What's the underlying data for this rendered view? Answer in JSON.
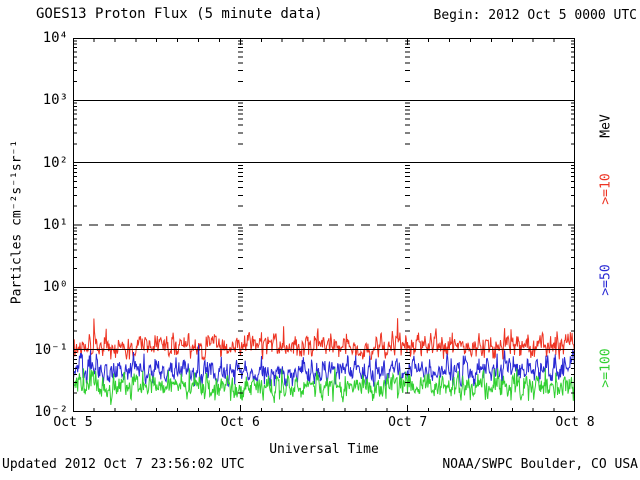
{
  "header": {
    "title": "GOES13 Proton Flux (5 minute data)",
    "begin_label": "Begin: 2012 Oct 5 0000 UTC"
  },
  "footer": {
    "updated": "Updated 2012 Oct  7 23:56:02 UTC",
    "source": "NOAA/SWPC Boulder, CO USA"
  },
  "chart_data": {
    "type": "line",
    "title": "GOES13 Proton Flux (5 minute data)",
    "xlabel": "Universal Time",
    "ylabel": "Particles cm⁻²s⁻¹sr⁻¹",
    "right_axis_unit": "MeV",
    "y_scale": "log10",
    "ylim": [
      0.01,
      10000
    ],
    "y_tick_labels": [
      "10⁴",
      "10³",
      "10²",
      "10¹",
      "10⁰",
      "10⁻¹",
      "10⁻²"
    ],
    "x_tick_labels": [
      "Oct 5",
      "Oct 6",
      "Oct 7",
      "Oct 8"
    ],
    "n_days": 3,
    "points_per_day": 288,
    "begin_time": "2012 Oct 5 0000 UTC",
    "x_minor_ticks_per_day": 8,
    "y_gridlines": [
      {
        "value": 1000,
        "style": "solid"
      },
      {
        "value": 100,
        "style": "solid"
      },
      {
        "value": 10,
        "style": "dashed"
      },
      {
        "value": 1,
        "style": "solid"
      },
      {
        "value": 0.1,
        "style": "solid"
      }
    ],
    "grid_color": "#000000",
    "legend_position": "right-rotated",
    "series": [
      {
        "name": ">=10 MeV",
        "label": ">=10",
        "color": "#ee3423",
        "baseline": 0.115,
        "baseline_log10": -0.94,
        "sigma_log10": 0.09,
        "range": [
          0.07,
          0.32
        ],
        "description": "noisy background flux hovering just above 1e-1 with spikes to ~3e-1"
      },
      {
        "name": ">=50 MeV",
        "label": ">=50",
        "color": "#2929d4",
        "baseline": 0.047,
        "baseline_log10": -1.33,
        "sigma_log10": 0.1,
        "range": [
          0.026,
          0.12
        ],
        "description": "noisy background flux around 4-6e-2"
      },
      {
        "name": ">=100 MeV",
        "label": ">=100",
        "color": "#31d031",
        "baseline": 0.026,
        "baseline_log10": -1.59,
        "sigma_log10": 0.09,
        "range": [
          0.013,
          0.05
        ],
        "description": "noisy background flux around 2-3e-2, clipping near 1.4e-2"
      }
    ]
  }
}
